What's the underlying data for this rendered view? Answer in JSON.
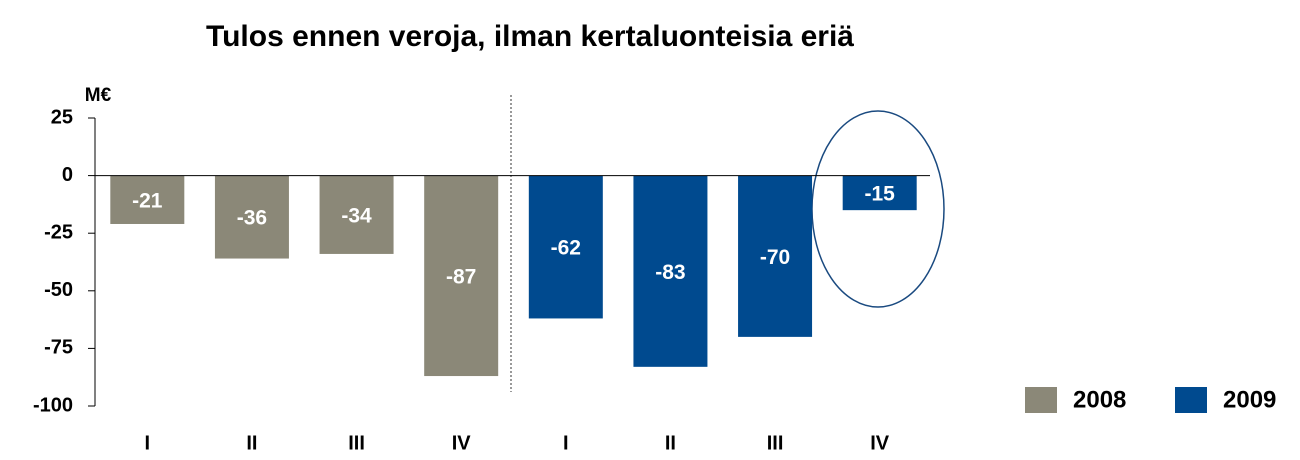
{
  "chart_data": {
    "type": "bar",
    "title": "Tulos ennen veroja, ilman kertaluonteisia eriä",
    "y_label": "M€",
    "categories": [
      "I",
      "II",
      "III",
      "IV",
      "I",
      "II",
      "III",
      "IV"
    ],
    "series": [
      {
        "name": "2008",
        "color": "#8b8878",
        "values": [
          -21,
          -36,
          -34,
          -87,
          null,
          null,
          null,
          null
        ]
      },
      {
        "name": "2009",
        "color": "#004a8f",
        "values": [
          null,
          null,
          null,
          null,
          -62,
          -83,
          -70,
          -15
        ]
      }
    ],
    "ylim": [
      -100,
      25
    ],
    "yticks": [
      25,
      0,
      -25,
      -50,
      -75,
      -100
    ],
    "legend": "bottom-right"
  }
}
